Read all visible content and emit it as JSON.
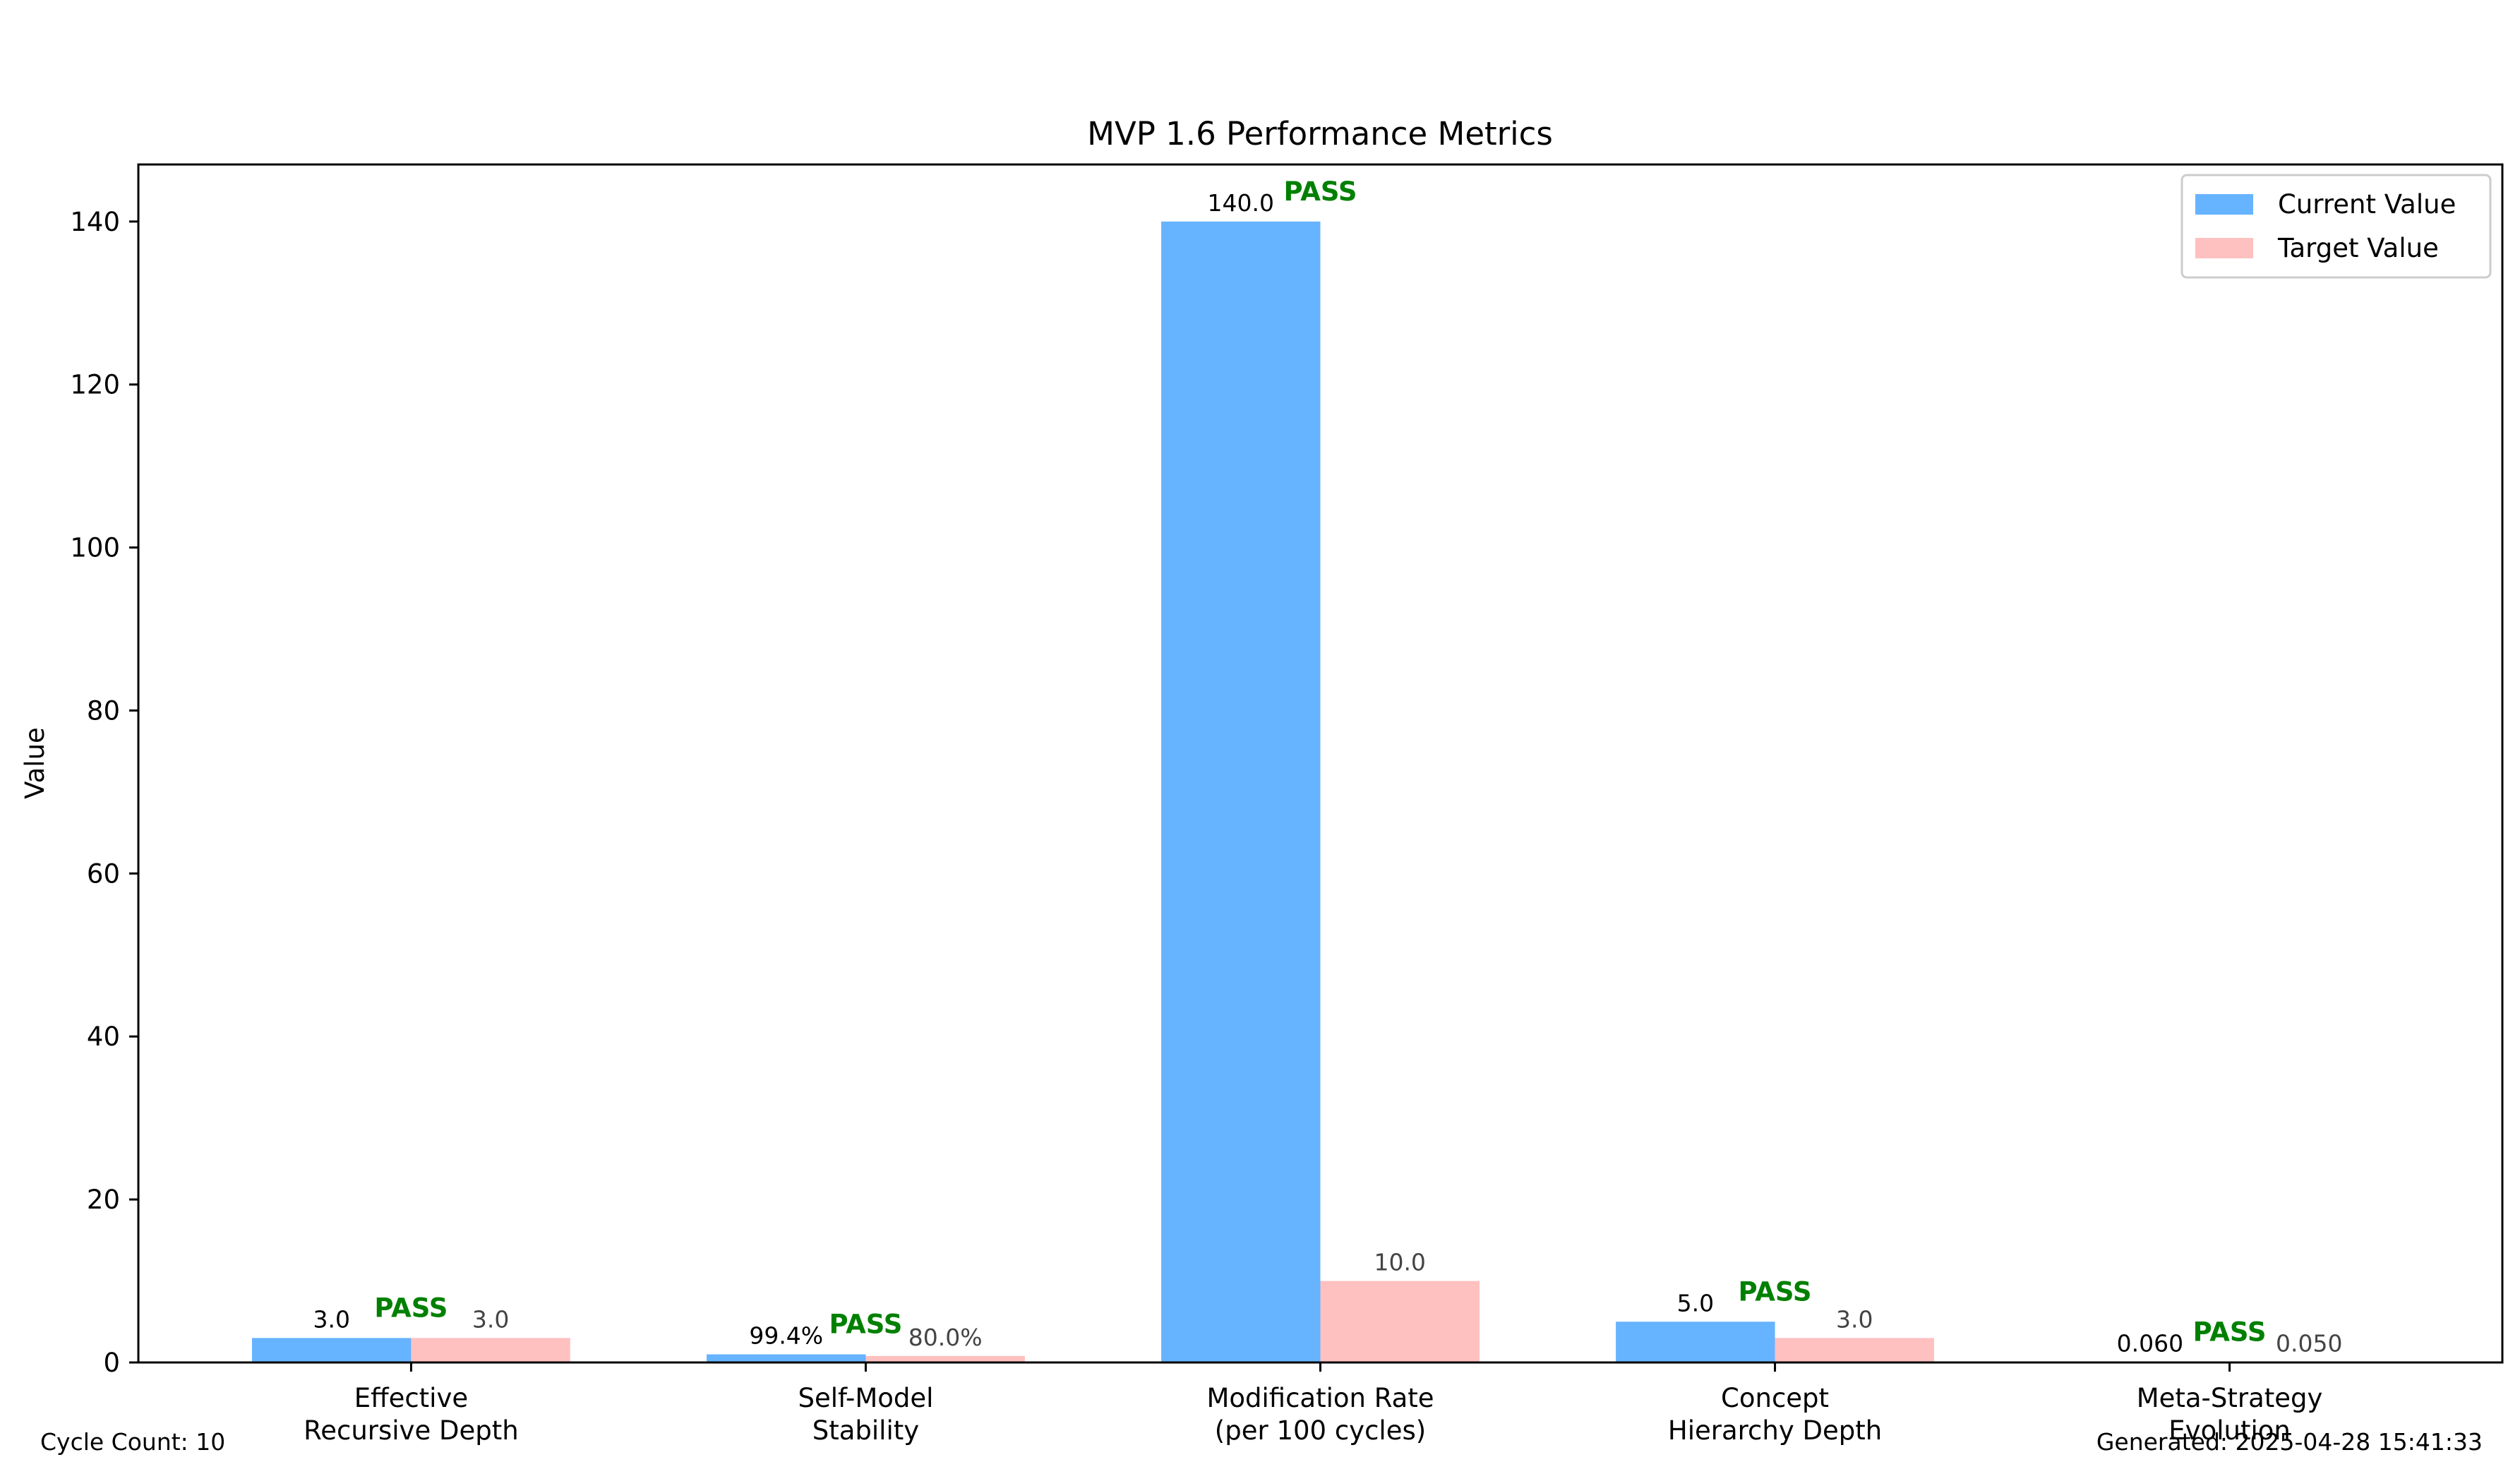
{
  "chart_data": {
    "type": "bar",
    "title": "MVP 1.6 Performance Metrics",
    "xlabel": "",
    "ylabel": "Value",
    "ylim": [
      0,
      147
    ],
    "yticks": [
      0,
      20,
      40,
      60,
      80,
      100,
      120,
      140
    ],
    "grid": false,
    "legend_position": "top-right",
    "categories": [
      [
        "Effective",
        "Recursive Depth"
      ],
      [
        "Self-Model",
        "Stability"
      ],
      [
        "Modification Rate",
        "(per 100 cycles)"
      ],
      [
        "Concept",
        "Hierarchy Depth"
      ],
      [
        "Meta-Strategy",
        "Evolution"
      ]
    ],
    "series": [
      {
        "name": "Current Value",
        "color": "#66b3ff",
        "values": [
          3.0,
          0.994,
          140.0,
          5.0,
          0.06
        ],
        "labels": [
          "3.0",
          "99.4%",
          "140.0",
          "5.0",
          "0.060"
        ],
        "label_color": "#000000"
      },
      {
        "name": "Target Value",
        "color": "#ffc0c0",
        "values": [
          3.0,
          0.8,
          10.0,
          3.0,
          0.05
        ],
        "labels": [
          "3.0",
          "80.0%",
          "10.0",
          "3.0",
          "0.050"
        ],
        "label_color": "#444444"
      }
    ],
    "status": [
      "PASS",
      "PASS",
      "PASS",
      "PASS",
      "PASS"
    ],
    "status_color": "#008000"
  },
  "footer": {
    "cycle_count": "Cycle Count: 10",
    "generated": "Generated: 2025-04-28 15:41:33"
  }
}
